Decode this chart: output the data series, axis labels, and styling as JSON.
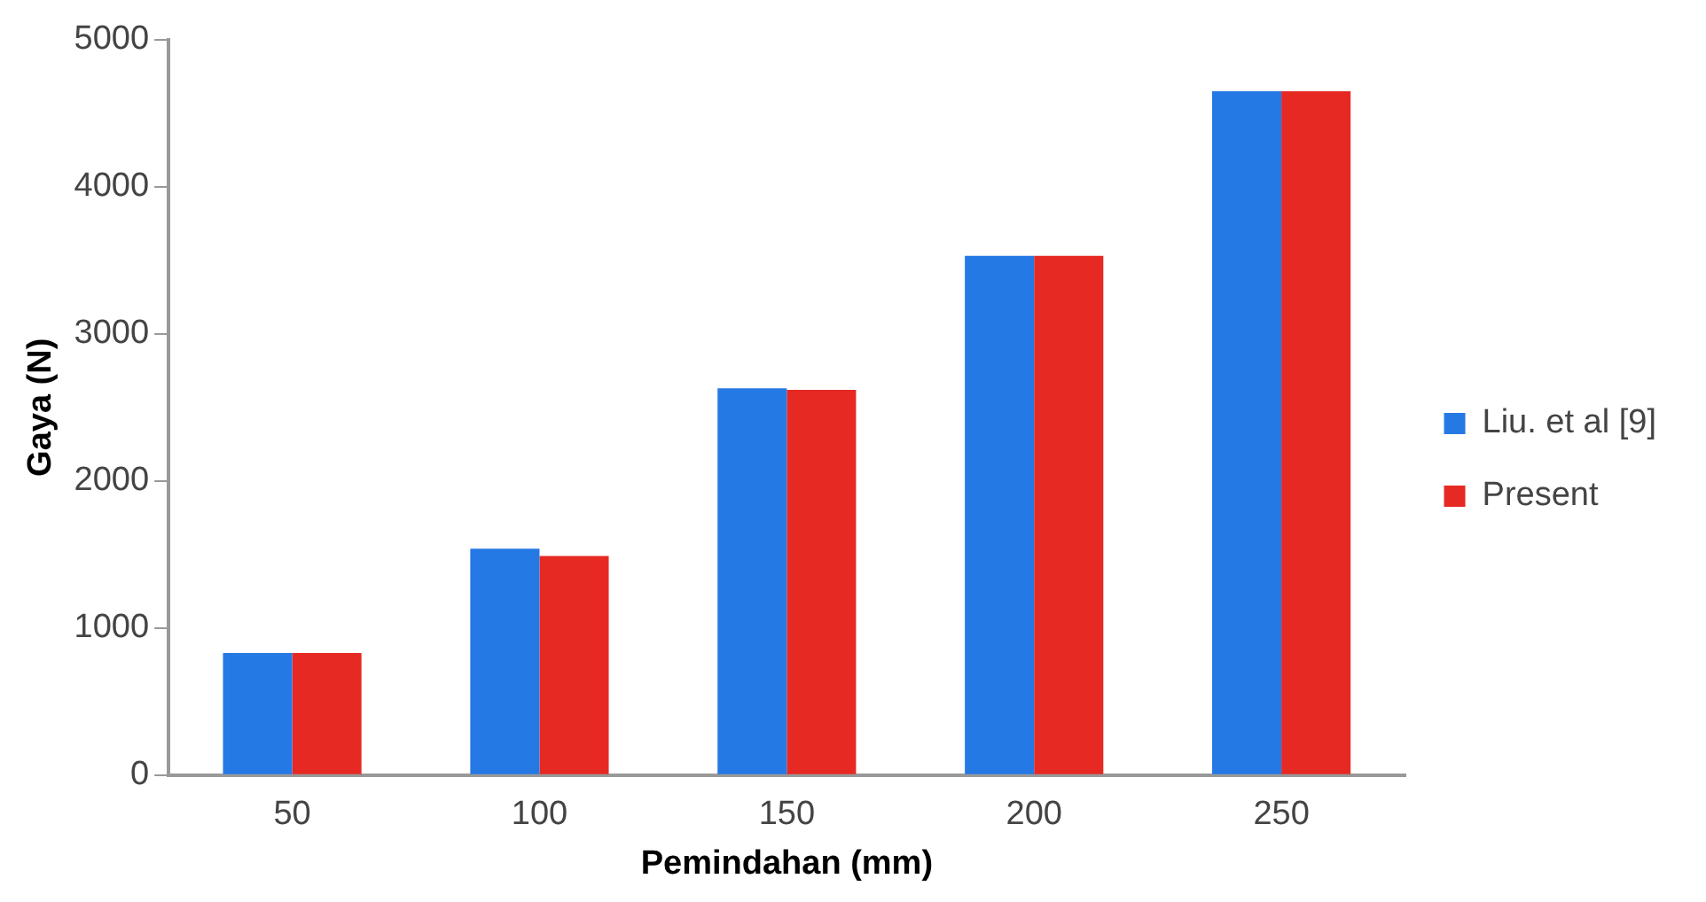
{
  "chart_data": {
    "type": "bar",
    "xlabel": "Pemindahan (mm)",
    "ylabel": "Gaya (N)",
    "categories": [
      "50",
      "100",
      "150",
      "200",
      "250"
    ],
    "series": [
      {
        "name": "Liu. et al [9]",
        "color": "#2579e4",
        "values": [
          830,
          1540,
          2630,
          3530,
          4650
        ]
      },
      {
        "name": "Present",
        "color": "#e62923",
        "values": [
          830,
          1490,
          2620,
          3530,
          4650
        ]
      }
    ],
    "ylim": [
      0,
      5000
    ],
    "yticks": [
      0,
      1000,
      2000,
      3000,
      4000,
      5000
    ],
    "grid": false,
    "legend": "right"
  }
}
